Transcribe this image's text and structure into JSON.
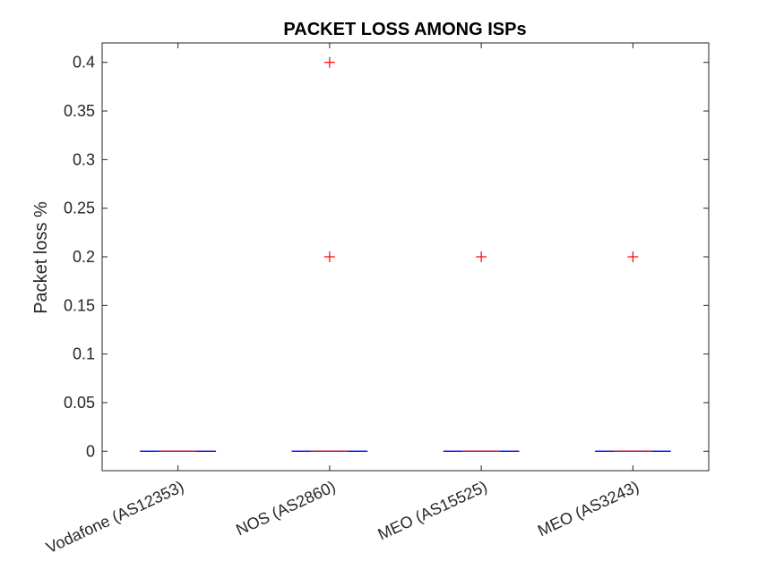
{
  "chart_data": {
    "type": "box",
    "title": "PACKET LOSS AMONG ISPs",
    "xlabel": "",
    "ylabel": "Packet loss %",
    "ylim": [
      -0.02,
      0.42
    ],
    "yticks": [
      "0",
      "0.05",
      "0.1",
      "0.15",
      "0.2",
      "0.25",
      "0.3",
      "0.35",
      "0.4"
    ],
    "categories": [
      "Vodafone (AS12353)",
      "NOS (AS2860)",
      "MEO (AS15525)",
      "MEO (AS3243)"
    ],
    "boxes": [
      {
        "q1": 0,
        "median": 0,
        "q3": 0,
        "whisker_low": 0,
        "whisker_high": 0,
        "outliers": []
      },
      {
        "q1": 0,
        "median": 0,
        "q3": 0,
        "whisker_low": 0,
        "whisker_high": 0,
        "outliers": [
          0.4,
          0.2
        ]
      },
      {
        "q1": 0,
        "median": 0,
        "q3": 0,
        "whisker_low": 0,
        "whisker_high": 0,
        "outliers": [
          0.2
        ]
      },
      {
        "q1": 0,
        "median": 0,
        "q3": 0,
        "whisker_low": 0,
        "whisker_high": 0,
        "outliers": [
          0.2
        ]
      }
    ],
    "colors": {
      "box": "#0000ff",
      "median": "#ff0000",
      "outlier": "#ff0000"
    },
    "grid": false
  }
}
